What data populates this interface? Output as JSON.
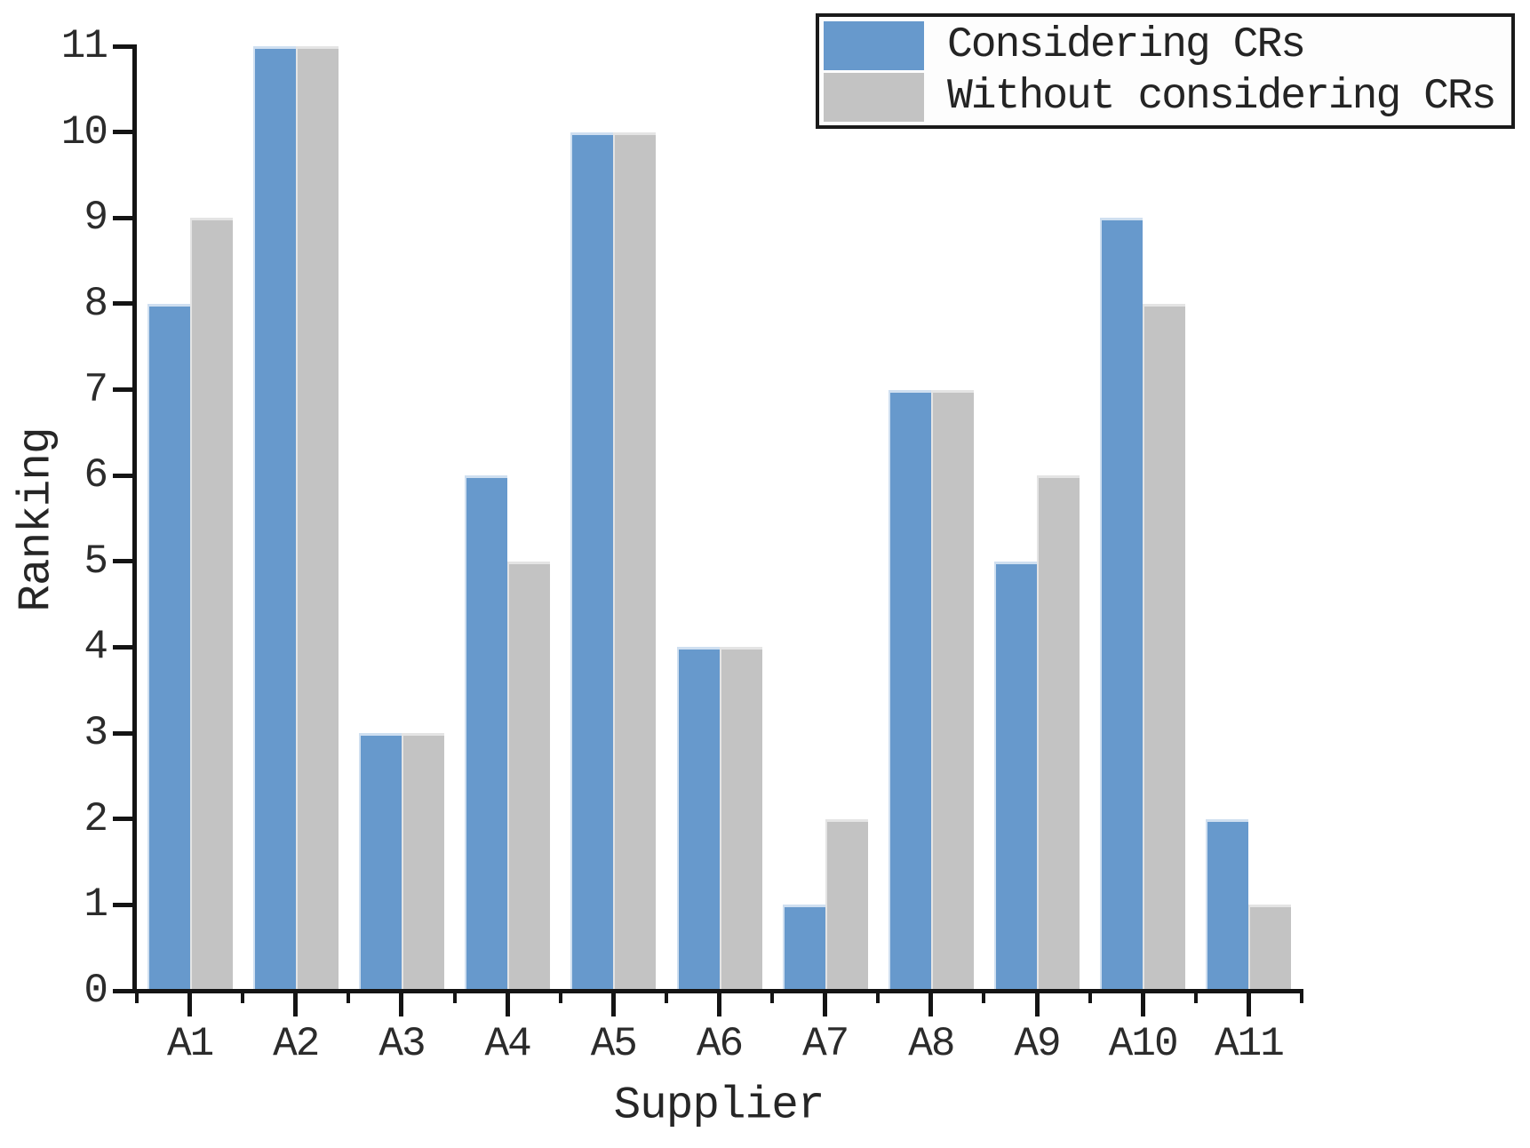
{
  "chart_data": {
    "type": "bar",
    "title": "",
    "xlabel": "Supplier",
    "ylabel": "Ranking",
    "categories": [
      "A1",
      "A2",
      "A3",
      "A4",
      "A5",
      "A6",
      "A7",
      "A8",
      "A9",
      "A10",
      "A11"
    ],
    "series": [
      {
        "name": "Considering CRs",
        "color": "#6799cc",
        "edge_color": "#cfdff0",
        "values": [
          8,
          11,
          3,
          6,
          10,
          4,
          1,
          7,
          5,
          9,
          2
        ]
      },
      {
        "name": "Without considering CRs",
        "color": "#c3c3c3",
        "edge_color": "#e4e4e4",
        "values": [
          9,
          11,
          3,
          5,
          10,
          4,
          2,
          7,
          6,
          8,
          1
        ]
      }
    ],
    "ylim": [
      0,
      11
    ],
    "yticks": [
      0,
      1,
      2,
      3,
      4,
      5,
      6,
      7,
      8,
      9,
      10,
      11
    ],
    "legend_position": "upper right",
    "grid": false,
    "axis_color": "#141414",
    "tick_label_color": "#2b2b2b"
  }
}
